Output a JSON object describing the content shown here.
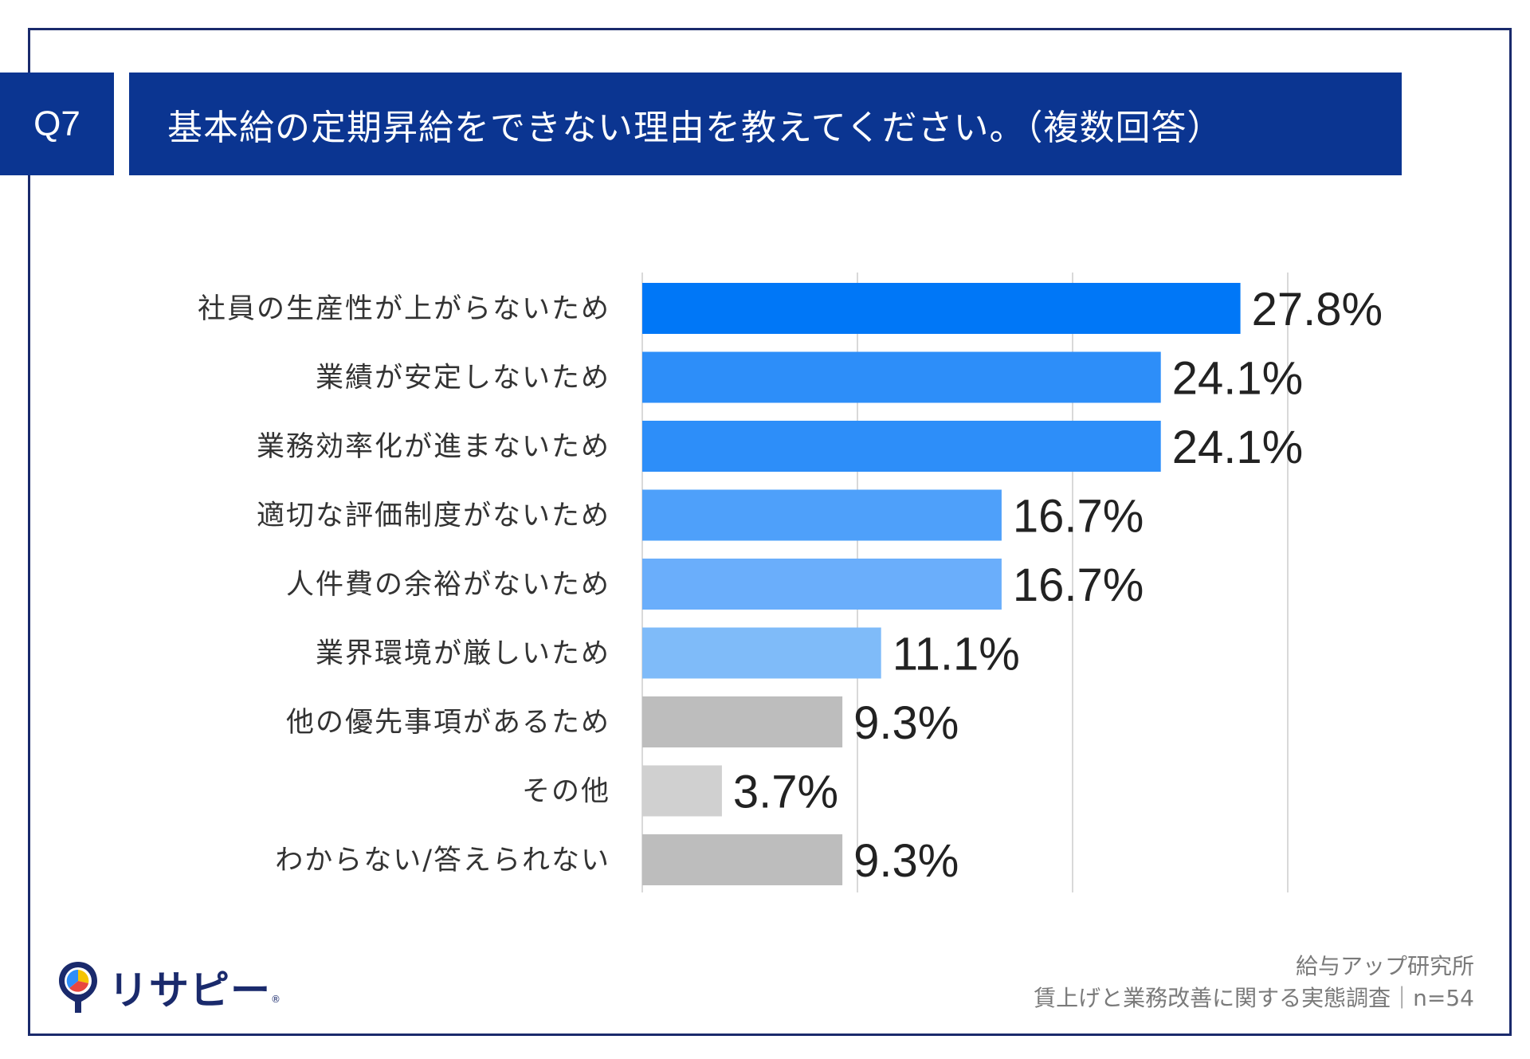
{
  "header": {
    "question_number": "Q7",
    "title": "基本給の定期昇給をできない理由を教えてください。（複数回答）"
  },
  "chart_data": {
    "type": "bar",
    "orientation": "horizontal",
    "title": "基本給の定期昇給をできない理由を教えてください。（複数回答）",
    "categories": [
      "社員の生産性が上がらないため",
      "業績が安定しないため",
      "業務効率化が進まないため",
      "適切な評価制度がないため",
      "人件費の余裕がないため",
      "業界環境が厳しいため",
      "他の優先事項があるため",
      "その他",
      "わからない/答えられない"
    ],
    "values": [
      27.8,
      24.1,
      24.1,
      16.7,
      16.7,
      11.1,
      9.3,
      3.7,
      9.3
    ],
    "value_labels": [
      "27.8%",
      "24.1%",
      "24.1%",
      "16.7%",
      "16.7%",
      "11.1%",
      "9.3%",
      "3.7%",
      "9.3%"
    ],
    "colors": [
      "#0077f7",
      "#2d8ef9",
      "#2d8ef9",
      "#4ea0fa",
      "#6aaefb",
      "#7fbbf9",
      "#bdbdbd",
      "#d0d0d0",
      "#bdbdbd"
    ],
    "xlim": [
      0,
      40
    ],
    "gridlines": [
      10,
      20,
      30
    ],
    "grid_color": "#d9d9d9",
    "unit": "%"
  },
  "footer": {
    "org": "給与アップ研究所",
    "survey": "賃上げと業務改善に関する実態調査｜n=54"
  },
  "logo": {
    "text": "リサピー",
    "mark": "®",
    "icon": "pin-icon",
    "colors": [
      "#1a2a6c",
      "#f5c400",
      "#e8473f",
      "#2d8ef9"
    ]
  }
}
